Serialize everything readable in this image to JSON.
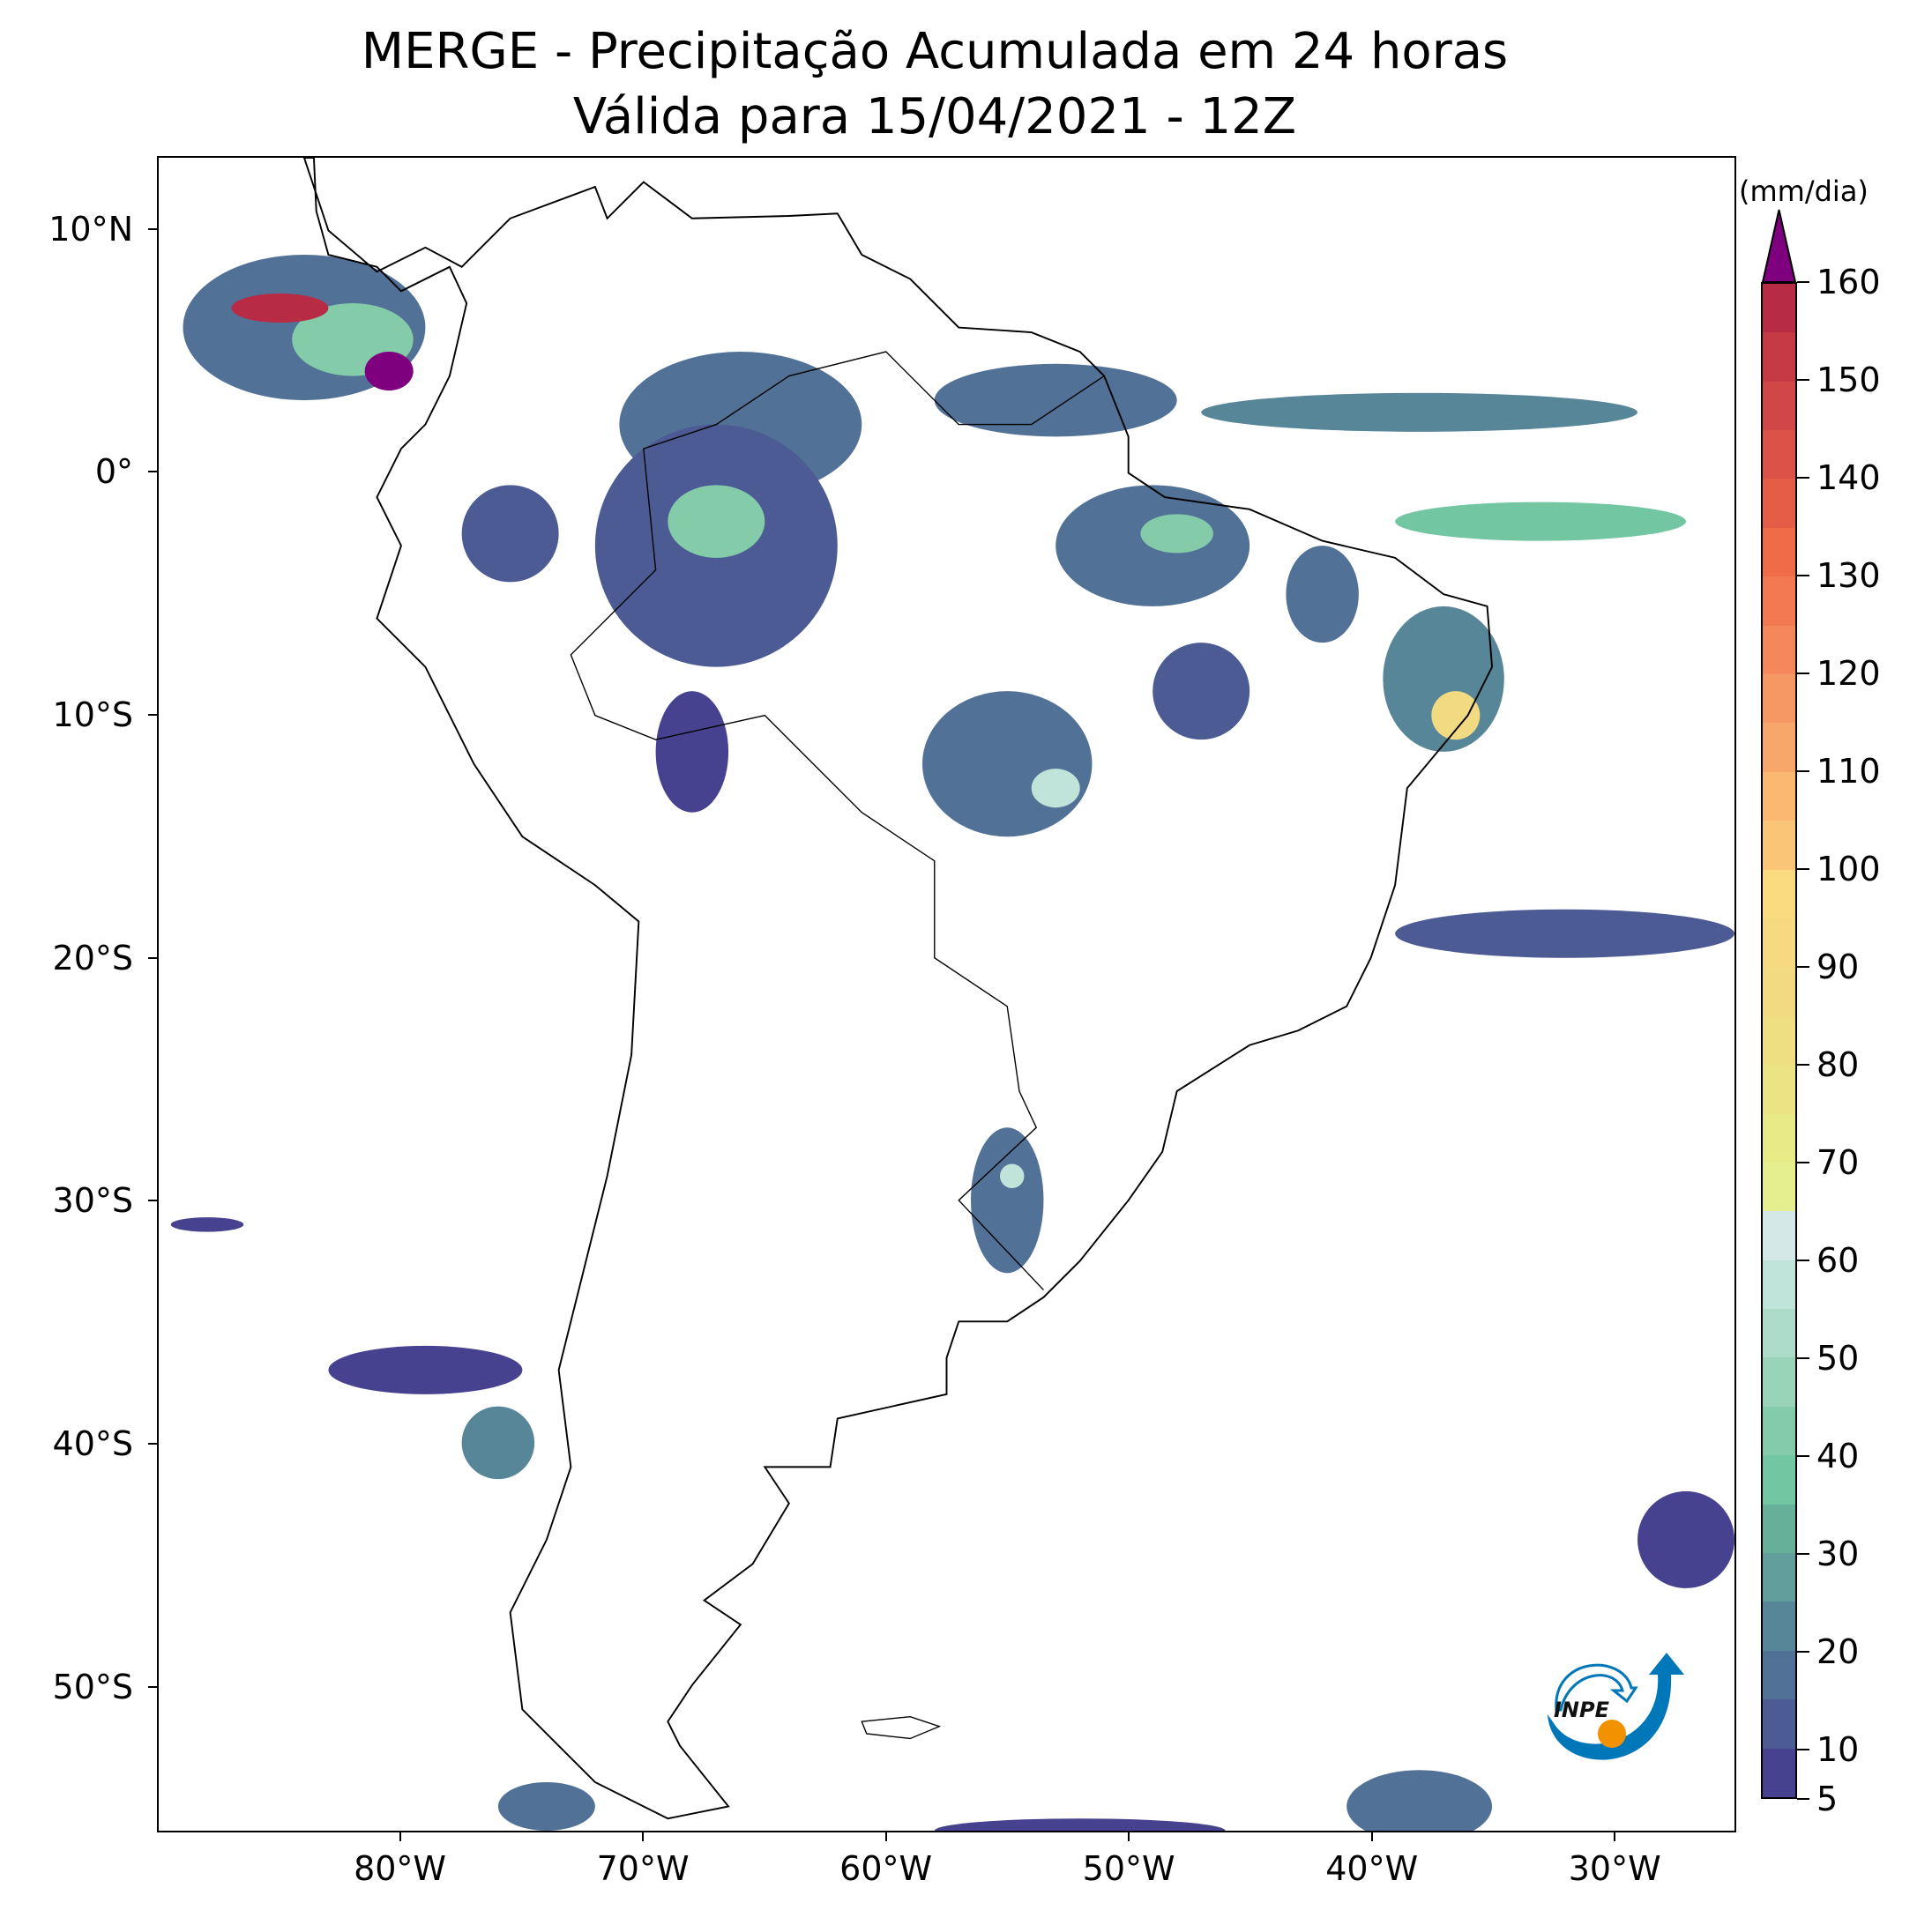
{
  "title": {
    "line1": "MERGE - Precipitação Acumulada em 24 horas",
    "line2": "Válida para 15/04/2021 - 12Z"
  },
  "map": {
    "lon_range": [
      -90,
      -25
    ],
    "lat_range": [
      -56,
      13
    ],
    "x_ticks": [
      {
        "lon": -80,
        "label": "80°W"
      },
      {
        "lon": -70,
        "label": "70°W"
      },
      {
        "lon": -60,
        "label": "60°W"
      },
      {
        "lon": -50,
        "label": "50°W"
      },
      {
        "lon": -40,
        "label": "40°W"
      },
      {
        "lon": -30,
        "label": "30°W"
      }
    ],
    "y_ticks": [
      {
        "lat": 10,
        "label": "10°N"
      },
      {
        "lat": 0,
        "label": "0°"
      },
      {
        "lat": -10,
        "label": "10°S"
      },
      {
        "lat": -20,
        "label": "20°S"
      },
      {
        "lat": -30,
        "label": "30°S"
      },
      {
        "lat": -40,
        "label": "40°S"
      },
      {
        "lat": -50,
        "label": "50°S"
      }
    ],
    "precip_areas": [
      {
        "lon": -84,
        "lat": 6,
        "rlon": 5,
        "rlat": 3,
        "mm": 17
      },
      {
        "lon": -82,
        "lat": 5.5,
        "rlon": 2.5,
        "rlat": 1.5,
        "mm": 42
      },
      {
        "lon": -85,
        "lat": 6.8,
        "rlon": 2,
        "rlat": 0.6,
        "mm": 158
      },
      {
        "lon": -80.5,
        "lat": 4.2,
        "rlon": 1,
        "rlat": 0.8,
        "mm": 165
      },
      {
        "lon": -66,
        "lat": 2,
        "rlon": 5,
        "rlat": 3,
        "mm": 17
      },
      {
        "lon": -67,
        "lat": -3,
        "rlon": 5,
        "rlat": 5,
        "mm": 12
      },
      {
        "lon": -67,
        "lat": -2,
        "rlon": 2,
        "rlat": 1.5,
        "mm": 42
      },
      {
        "lon": -68,
        "lat": -11.5,
        "rlon": 1.5,
        "rlat": 2.5,
        "mm": 7
      },
      {
        "lon": -75.5,
        "lat": -2.5,
        "rlon": 2,
        "rlat": 2,
        "mm": 12
      },
      {
        "lon": -53,
        "lat": 3,
        "rlon": 5,
        "rlat": 1.5,
        "mm": 17
      },
      {
        "lon": -38,
        "lat": 2.5,
        "rlon": 9,
        "rlat": 0.8,
        "mm": 22
      },
      {
        "lon": -33,
        "lat": -2,
        "rlon": 6,
        "rlat": 0.8,
        "mm": 37
      },
      {
        "lon": -49,
        "lat": -3,
        "rlon": 4,
        "rlat": 2.5,
        "mm": 15
      },
      {
        "lon": -48,
        "lat": -2.5,
        "rlon": 1.5,
        "rlat": 0.8,
        "mm": 42
      },
      {
        "lon": -42,
        "lat": -5,
        "rlon": 1.5,
        "rlat": 2,
        "mm": 15
      },
      {
        "lon": -37,
        "lat": -8.5,
        "rlon": 2.5,
        "rlat": 3,
        "mm": 22
      },
      {
        "lon": -36.5,
        "lat": -10,
        "rlon": 1,
        "rlat": 1,
        "mm": 88
      },
      {
        "lon": -55,
        "lat": -12,
        "rlon": 3.5,
        "rlat": 3,
        "mm": 17
      },
      {
        "lon": -53,
        "lat": -13,
        "rlon": 1,
        "rlat": 0.8,
        "mm": 57
      },
      {
        "lon": -47,
        "lat": -9,
        "rlon": 2,
        "rlat": 2,
        "mm": 12
      },
      {
        "lon": -55,
        "lat": -30,
        "rlon": 1.5,
        "rlat": 3,
        "mm": 15
      },
      {
        "lon": -54.8,
        "lat": -29,
        "rlon": 0.5,
        "rlat": 0.5,
        "mm": 57
      },
      {
        "lon": -32,
        "lat": -19,
        "rlon": 7,
        "rlat": 1,
        "mm": 12
      },
      {
        "lon": -79,
        "lat": -37,
        "rlon": 4,
        "rlat": 1,
        "mm": 7
      },
      {
        "lon": -76,
        "lat": -40,
        "rlon": 1.5,
        "rlat": 1.5,
        "mm": 22
      },
      {
        "lon": -74,
        "lat": -55,
        "rlon": 2,
        "rlat": 1,
        "mm": 15
      },
      {
        "lon": -38,
        "lat": -55,
        "rlon": 3,
        "rlat": 1.5,
        "mm": 15
      },
      {
        "lon": -52,
        "lat": -56,
        "rlon": 6,
        "rlat": 0.5,
        "mm": 7
      },
      {
        "lon": -27,
        "lat": -44,
        "rlon": 2,
        "rlat": 2,
        "mm": 7
      },
      {
        "lon": -88,
        "lat": -31,
        "rlon": 1.5,
        "rlat": 0.3,
        "mm": 7
      }
    ]
  },
  "colorbar": {
    "units": "(mm/dia)",
    "min": 5,
    "max": 160,
    "step": 5,
    "extend_color": "#7f007f",
    "colors": [
      "#46428f",
      "#4c5b93",
      "#527197",
      "#588699",
      "#619e9c",
      "#66b09a",
      "#72c6a2",
      "#84cbaa",
      "#99d3b8",
      "#aedccb",
      "#c0e3da",
      "#d4e9e7",
      "#e6ef8f",
      "#e8ea88",
      "#ece484",
      "#efdf83",
      "#f2da82",
      "#f6d981",
      "#fadb80",
      "#fbc577",
      "#fab870",
      "#f8a76a",
      "#f69863",
      "#f4885a",
      "#f37952",
      "#f06b48",
      "#e55d47",
      "#dd5248",
      "#d14647",
      "#c63a46",
      "#b72b45"
    ],
    "ticks": [
      {
        "v": 5,
        "label": "5"
      },
      {
        "v": 10,
        "label": "10"
      },
      {
        "v": 20,
        "label": "20"
      },
      {
        "v": 30,
        "label": "30"
      },
      {
        "v": 40,
        "label": "40"
      },
      {
        "v": 50,
        "label": "50"
      },
      {
        "v": 60,
        "label": "60"
      },
      {
        "v": 70,
        "label": "70"
      },
      {
        "v": 80,
        "label": "80"
      },
      {
        "v": 90,
        "label": "90"
      },
      {
        "v": 100,
        "label": "100"
      },
      {
        "v": 110,
        "label": "110"
      },
      {
        "v": 120,
        "label": "120"
      },
      {
        "v": 130,
        "label": "130"
      },
      {
        "v": 140,
        "label": "140"
      },
      {
        "v": 150,
        "label": "150"
      },
      {
        "v": 160,
        "label": "160"
      }
    ]
  },
  "logo": {
    "text": "INPE",
    "blue": "#0077b8",
    "orange": "#f39200"
  }
}
